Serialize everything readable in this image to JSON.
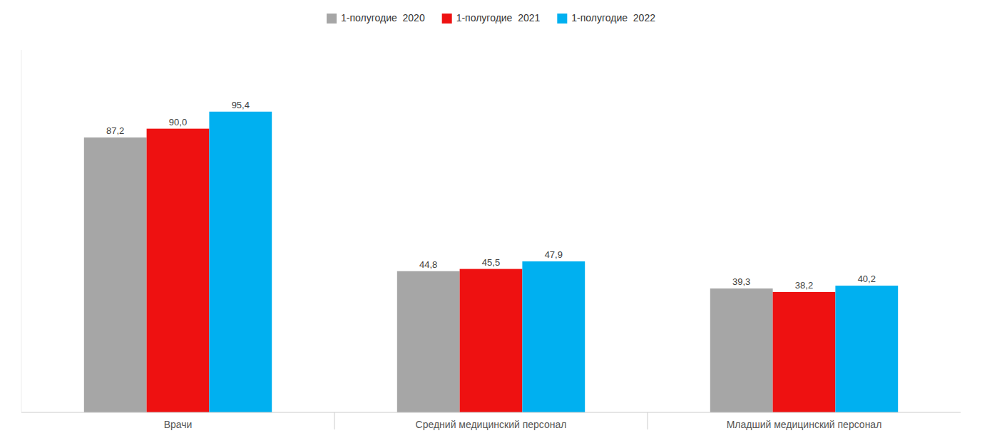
{
  "chart_data": {
    "type": "bar",
    "categories": [
      "Врачи",
      "Средний медицинский персонал",
      "Младший медицинский персонал"
    ],
    "series": [
      {
        "name": "1-полугодие  2020",
        "color": "#a6a6a6",
        "values": [
          87.2,
          44.8,
          39.3
        ],
        "value_labels": [
          "87,2",
          "44,8",
          "39,3"
        ]
      },
      {
        "name": "1-полугодие  2021",
        "color": "#ee1111",
        "values": [
          90.0,
          45.5,
          38.2
        ],
        "value_labels": [
          "90,0",
          "45,5",
          "38,2"
        ]
      },
      {
        "name": "1-полугодие  2022",
        "color": "#00b0f0",
        "values": [
          95.4,
          47.9,
          40.2
        ],
        "value_labels": [
          "95,4",
          "47,9",
          "40,2"
        ]
      }
    ],
    "ylim": [
      0,
      115
    ],
    "grid": false,
    "legend": "top",
    "data_labels": true,
    "tick_labels": "x"
  }
}
